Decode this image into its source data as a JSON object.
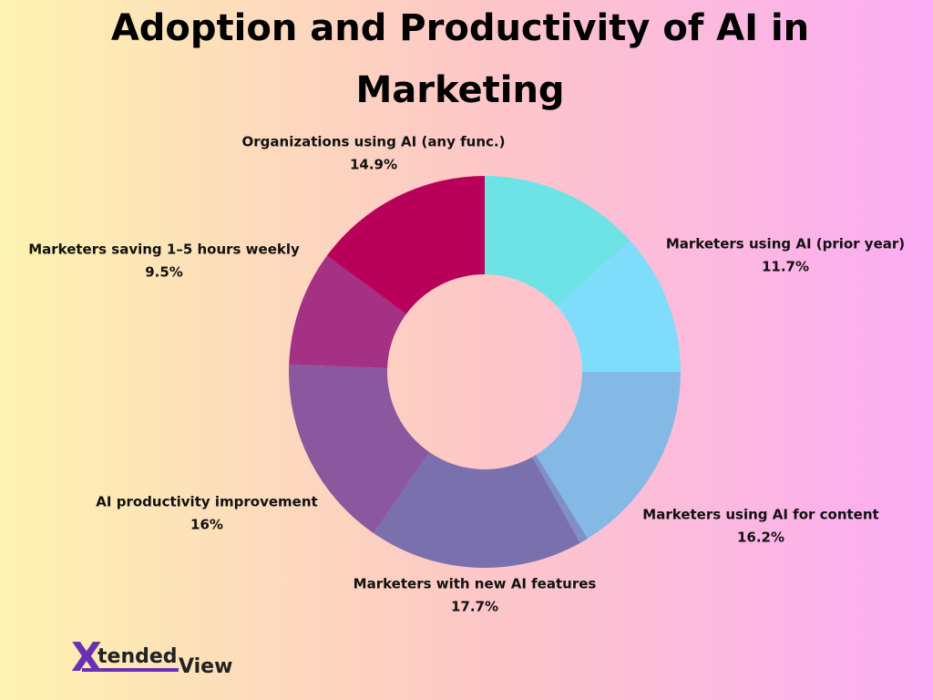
{
  "chart_data": {
    "type": "donut",
    "title": "Adoption and Productivity of AI in Marketing",
    "categories": [
      null,
      "Marketers using AI (prior year)",
      "Marketers using AI for content",
      null,
      "Marketers with new AI features",
      "AI productivity improvement",
      "Marketers saving 1–5 hours weekly",
      "Organizations using AI (any func.)"
    ],
    "values": [
      13.3,
      11.7,
      16.2,
      0.7,
      17.7,
      16,
      9.5,
      14.9
    ],
    "value_labels": [
      null,
      "11.7%",
      "16.2%",
      null,
      "17.7%",
      "16%",
      "9.5%",
      "14.9%"
    ],
    "colors": [
      "#6ee3e6",
      "#7fdcfb",
      "#84b9e6",
      "#7f8fc8",
      "#7b70ae",
      "#8b579f",
      "#a43184",
      "#b8005a"
    ]
  },
  "logo": {
    "mark": "X",
    "text": "tended",
    "text2": "View"
  }
}
